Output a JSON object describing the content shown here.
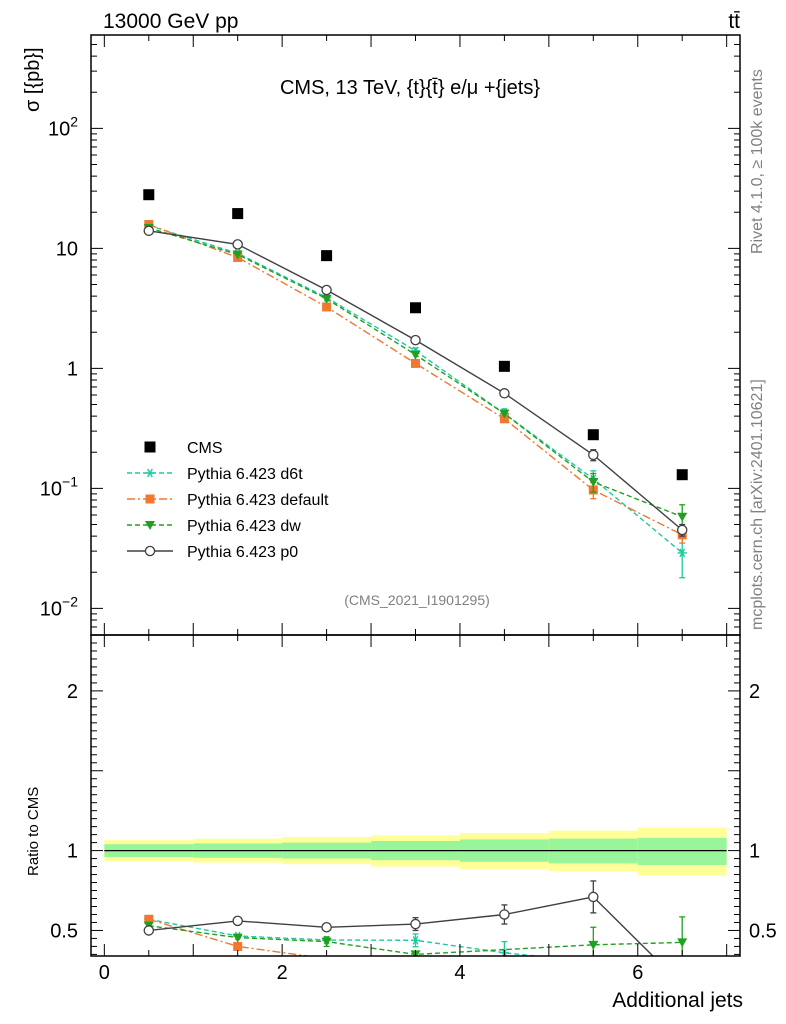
{
  "header": {
    "left_label": "13000 GeV pp",
    "right_label": "tt̄",
    "title": "CMS, 13 TeV, {t}{t̄} e/μ +{jets}",
    "analysis_id": "(CMS_2021_I1901295)",
    "side_label_top": "Rivet 4.1.0, ≥ 100k events",
    "side_label_bottom": "mcplots.cern.ch [arXiv:2401.10621]"
  },
  "chart_data": [
    {
      "type": "scatter",
      "name": "main",
      "ylabel": "σ [{pb}]",
      "yscale": "log",
      "ylim": [
        0.006,
        600
      ],
      "xlim": [
        -0.15,
        7.15
      ],
      "y_ticks": [
        {
          "value": 100,
          "base": "10",
          "exp": "2"
        },
        {
          "value": 10,
          "base": "10",
          "exp": ""
        },
        {
          "value": 1,
          "base": "1",
          "exp": ""
        },
        {
          "value": 0.1,
          "base": "10",
          "exp": "−1"
        },
        {
          "value": 0.01,
          "base": "10",
          "exp": "−2"
        }
      ],
      "x": [
        0.5,
        1.5,
        2.5,
        3.5,
        4.5,
        5.5,
        6.5
      ],
      "data": {
        "name": "CMS",
        "values": [
          28.0,
          19.5,
          8.7,
          3.2,
          1.04,
          0.28,
          0.13
        ],
        "color": "#000000"
      },
      "series": [
        {
          "name": "Pythia 6.423 d6t",
          "values": [
            15.5,
            9.1,
            3.9,
            1.4,
            0.42,
            0.12,
            0.029
          ],
          "err": [
            0,
            0,
            0,
            0.08,
            0.04,
            0.02,
            0.011
          ],
          "color": "#20c8a0",
          "marker": "star",
          "dash": "5,3"
        },
        {
          "name": "Pythia 6.423 default",
          "values": [
            15.8,
            8.4,
            3.25,
            1.1,
            0.38,
            0.097,
            0.041
          ],
          "err": [
            0,
            0,
            0,
            0,
            0,
            0.015,
            0.006
          ],
          "color": "#f07830",
          "marker": "square",
          "dash": "8,3,2,3"
        },
        {
          "name": "Pythia 6.423 dw",
          "values": [
            14.8,
            8.9,
            3.8,
            1.3,
            0.42,
            0.113,
            0.058
          ],
          "err": [
            0,
            0,
            0,
            0,
            0,
            0.02,
            0.015
          ],
          "color": "#20a020",
          "marker": "triangle",
          "dash": "5,3"
        },
        {
          "name": "Pythia 6.423 p0",
          "values": [
            14.0,
            10.8,
            4.5,
            1.72,
            0.62,
            0.19,
            0.045
          ],
          "err": [
            0,
            0,
            0,
            0,
            0,
            0.02,
            0.005
          ],
          "color": "#404040",
          "marker": "circle",
          "dash": ""
        }
      ]
    },
    {
      "type": "line",
      "name": "ratio",
      "ylabel": "Ratio to CMS",
      "xlabel": "Additional jets",
      "ylim": [
        0.34,
        2.35
      ],
      "xlim": [
        -0.15,
        7.15
      ],
      "x_ticks": [
        0,
        2,
        4,
        6
      ],
      "y_ticks": [
        0.5,
        1,
        2
      ],
      "bands": {
        "edges": [
          0,
          1,
          2,
          3,
          4,
          5,
          6,
          7
        ],
        "stat_lo": [
          0.96,
          0.955,
          0.95,
          0.94,
          0.93,
          0.92,
          0.91
        ],
        "stat_hi": [
          1.04,
          1.045,
          1.05,
          1.06,
          1.07,
          1.075,
          1.08
        ],
        "syst_lo": [
          0.935,
          0.925,
          0.915,
          0.9,
          0.885,
          0.87,
          0.845
        ],
        "syst_hi": [
          1.065,
          1.075,
          1.085,
          1.095,
          1.11,
          1.125,
          1.145
        ],
        "stat_color": "#99f599",
        "syst_color": "#ffff99"
      },
      "series": [
        {
          "name": "Pythia 6.423 d6t",
          "x": [
            0.5,
            1.5,
            2.5,
            3.5,
            4.5,
            4.85
          ],
          "values": [
            0.57,
            0.465,
            0.44,
            0.438,
            0.36,
            0.34
          ],
          "err": [
            0,
            0,
            0,
            0.04,
            0.07,
            0
          ],
          "color": "#20c8a0",
          "marker": "star",
          "dash": "5,3"
        },
        {
          "name": "Pythia 6.423 default",
          "x": [
            0.5,
            1.5,
            2.28
          ],
          "values": [
            0.57,
            0.4,
            0.34
          ],
          "err": [
            0,
            0,
            0
          ],
          "color": "#f07830",
          "marker": "square",
          "dash": "8,3,2,3"
        },
        {
          "name": "Pythia 6.423 dw",
          "x": [
            0.5,
            1.5,
            2.5,
            3.5,
            5.5,
            6.5
          ],
          "values": [
            0.53,
            0.455,
            0.43,
            0.35,
            0.41,
            0.425
          ],
          "err": [
            0,
            0,
            0.03,
            0,
            0.11,
            0.16
          ],
          "color": "#20a020",
          "marker": "triangle",
          "dash": "5,3"
        },
        {
          "name": "Pythia 6.423 p0",
          "x": [
            0.5,
            1.5,
            2.5,
            3.5,
            4.5,
            5.5,
            6.17
          ],
          "values": [
            0.5,
            0.56,
            0.52,
            0.54,
            0.6,
            0.71,
            0.34
          ],
          "err": [
            0,
            0,
            0.02,
            0.04,
            0.06,
            0.1,
            0
          ],
          "color": "#404040",
          "marker": "circle",
          "dash": ""
        }
      ]
    }
  ]
}
